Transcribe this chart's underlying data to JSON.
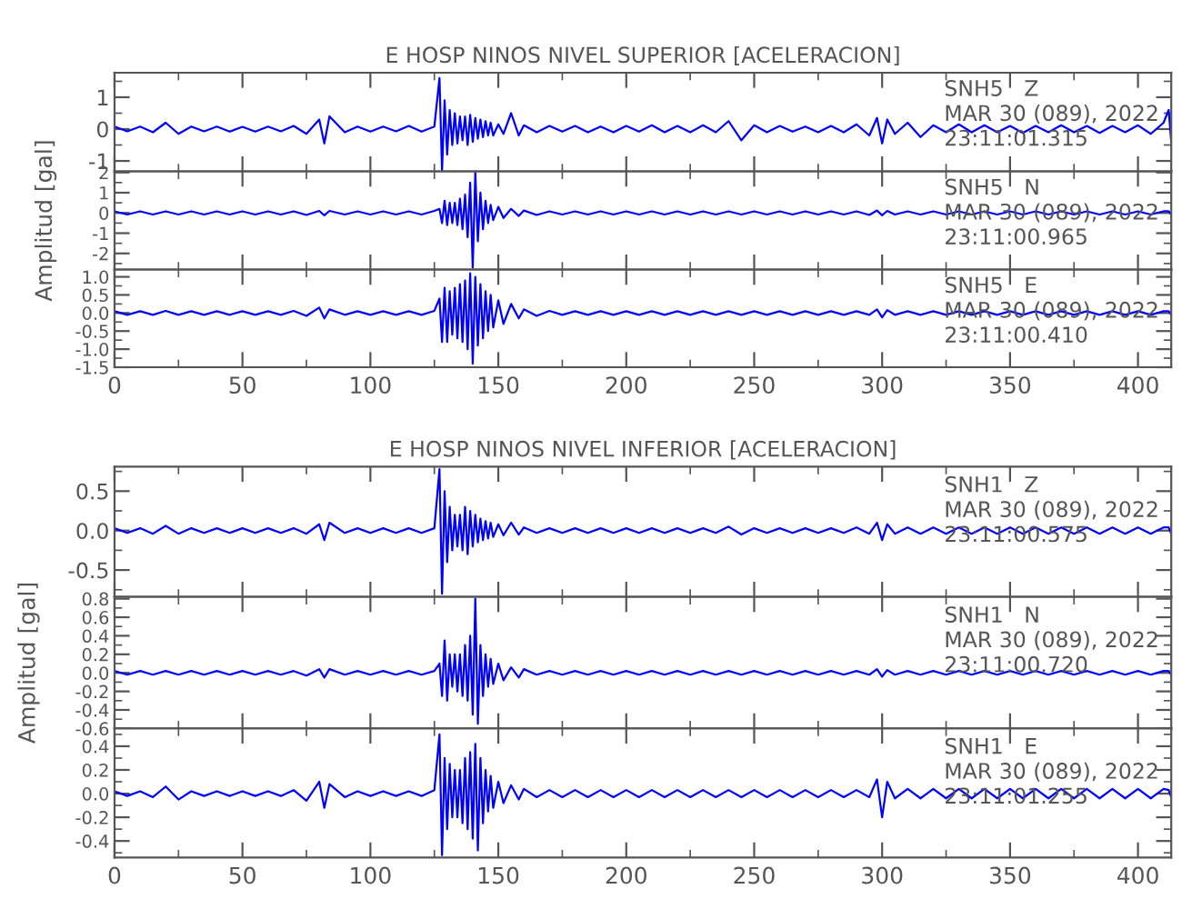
{
  "chart_data": [
    {
      "type": "line",
      "title": "E HOSP NINOS NIVEL SUPERIOR [ACELERACION]",
      "annotations": [
        "SNH5   Z\nMAR 30 (089), 2022\n23:11:01.315"
      ],
      "tick_labels": "y",
      "xlim": [
        0,
        413
      ],
      "xticks": [
        0,
        50,
        100,
        150,
        200,
        250,
        300,
        350,
        400
      ],
      "ylim": [
        -1.33,
        1.77
      ],
      "yticks": [
        -1,
        0,
        1
      ],
      "x": [
        0,
        5,
        10,
        15,
        20,
        25,
        30,
        35,
        40,
        45,
        50,
        55,
        60,
        65,
        70,
        75,
        80,
        82,
        84,
        90,
        95,
        100,
        105,
        110,
        115,
        120,
        125,
        127,
        128,
        129,
        130,
        131,
        132,
        133,
        134,
        135,
        136,
        137,
        138,
        139,
        140,
        141,
        142,
        143,
        144,
        145,
        146,
        147,
        148,
        150,
        152,
        155,
        158,
        160,
        165,
        170,
        175,
        180,
        185,
        190,
        195,
        200,
        205,
        210,
        215,
        220,
        225,
        230,
        235,
        240,
        245,
        250,
        255,
        260,
        265,
        270,
        275,
        280,
        285,
        290,
        295,
        298,
        300,
        302,
        305,
        310,
        315,
        320,
        325,
        330,
        335,
        340,
        345,
        350,
        355,
        360,
        365,
        370,
        375,
        380,
        385,
        390,
        395,
        400,
        405,
        410,
        412,
        413
      ],
      "series": [
        {
          "color": "#0000ff",
          "values": [
            0.08,
            -0.07,
            0.08,
            -0.1,
            0.2,
            -0.15,
            0.08,
            -0.07,
            0.08,
            -0.08,
            0.07,
            -0.08,
            0.08,
            -0.07,
            0.1,
            -0.15,
            0.3,
            -0.45,
            0.4,
            -0.1,
            0.08,
            -0.08,
            0.08,
            -0.07,
            0.1,
            -0.08,
            0.08,
            1.6,
            -1.3,
            0.9,
            -0.8,
            0.6,
            -0.5,
            0.5,
            -0.45,
            0.4,
            -0.35,
            0.4,
            -0.5,
            0.45,
            -0.4,
            0.35,
            -0.3,
            0.3,
            -0.25,
            0.25,
            -0.2,
            0.2,
            -0.2,
            0.15,
            -0.15,
            0.5,
            -0.2,
            0.12,
            -0.1,
            0.1,
            -0.08,
            0.1,
            -0.1,
            0.08,
            -0.1,
            0.1,
            -0.08,
            0.12,
            -0.1,
            0.1,
            -0.1,
            0.12,
            -0.1,
            0.25,
            -0.35,
            0.12,
            -0.1,
            0.1,
            -0.08,
            0.08,
            -0.1,
            0.1,
            -0.1,
            0.15,
            -0.2,
            0.35,
            -0.45,
            0.3,
            -0.15,
            0.2,
            -0.25,
            0.12,
            -0.1,
            0.15,
            -0.1,
            0.12,
            -0.1,
            0.1,
            -0.12,
            0.1,
            -0.1,
            0.12,
            -0.1,
            0.1,
            -0.12,
            0.1,
            -0.1,
            0.12,
            -0.15,
            0.2,
            0.6,
            -0.4
          ]
        }
      ]
    },
    {
      "type": "line",
      "ylabel": "Amplitud [gal]",
      "annotations": [
        "SNH5   N\nMAR 30 (089), 2022\n23:11:00.965"
      ],
      "tick_labels": "y",
      "xlim": [
        0,
        413
      ],
      "xticks": [
        0,
        50,
        100,
        150,
        200,
        250,
        300,
        350,
        400
      ],
      "ylim": [
        -2.8,
        2.05
      ],
      "yticks": [
        -2,
        -1,
        0,
        1,
        2
      ],
      "x": [
        0,
        5,
        10,
        15,
        20,
        25,
        30,
        35,
        40,
        45,
        50,
        55,
        60,
        65,
        70,
        75,
        80,
        82,
        84,
        90,
        95,
        100,
        105,
        110,
        115,
        120,
        125,
        127,
        128,
        129,
        130,
        131,
        132,
        133,
        134,
        135,
        136,
        137,
        138,
        139,
        140,
        141,
        142,
        143,
        144,
        145,
        146,
        147,
        148,
        150,
        152,
        155,
        158,
        160,
        165,
        170,
        175,
        180,
        185,
        190,
        195,
        200,
        205,
        210,
        215,
        220,
        225,
        230,
        235,
        240,
        245,
        250,
        255,
        260,
        265,
        270,
        275,
        280,
        285,
        290,
        295,
        298,
        300,
        302,
        305,
        310,
        315,
        320,
        325,
        330,
        335,
        340,
        345,
        350,
        355,
        360,
        365,
        370,
        375,
        380,
        385,
        390,
        395,
        400,
        405,
        410,
        412,
        413
      ],
      "series": [
        {
          "color": "#0000ff",
          "values": [
            0.08,
            -0.08,
            0.08,
            -0.08,
            0.08,
            -0.08,
            0.08,
            -0.08,
            0.08,
            -0.08,
            0.08,
            -0.08,
            0.08,
            -0.08,
            0.08,
            -0.1,
            0.1,
            -0.12,
            0.1,
            -0.08,
            0.08,
            -0.08,
            0.08,
            -0.08,
            0.08,
            -0.08,
            0.1,
            0.2,
            -0.5,
            0.6,
            -0.6,
            0.5,
            -0.5,
            0.5,
            -0.6,
            0.7,
            -0.8,
            0.9,
            -1.2,
            1.5,
            -2.7,
            2.0,
            -1.4,
            1.0,
            -0.8,
            0.6,
            -0.5,
            0.4,
            -0.35,
            0.3,
            -0.25,
            0.2,
            -0.15,
            0.12,
            -0.1,
            0.08,
            -0.08,
            0.08,
            -0.08,
            0.08,
            -0.08,
            0.08,
            -0.08,
            0.08,
            -0.08,
            0.08,
            -0.08,
            0.08,
            -0.08,
            0.08,
            -0.08,
            0.08,
            -0.08,
            0.08,
            -0.08,
            0.08,
            -0.08,
            0.08,
            -0.08,
            0.08,
            -0.1,
            0.12,
            -0.12,
            0.1,
            -0.08,
            0.08,
            -0.08,
            0.08,
            -0.08,
            0.08,
            -0.08,
            0.08,
            -0.08,
            0.08,
            -0.08,
            0.08,
            -0.08,
            0.08,
            -0.08,
            0.08,
            -0.08,
            0.08,
            -0.08,
            0.08,
            -0.08,
            0.08,
            0.08,
            -0.08
          ]
        }
      ]
    },
    {
      "type": "line",
      "annotations": [
        "SNH5   E\nMAR 30 (089), 2022\n23:11:00.410"
      ],
      "xlim": [
        0,
        413
      ],
      "xticks": [
        0,
        50,
        100,
        150,
        200,
        250,
        300,
        350,
        400
      ],
      "ylim": [
        -1.5,
        1.2
      ],
      "yticks": [
        -1.5,
        {
          "value": -1,
          "label": "-1.0"
        },
        -0.5,
        {
          "value": 0,
          "label": "0.0"
        },
        0.5,
        {
          "value": 1,
          "label": "1.0"
        }
      ],
      "x": [
        0,
        5,
        10,
        15,
        20,
        25,
        30,
        35,
        40,
        45,
        50,
        55,
        60,
        65,
        70,
        75,
        80,
        82,
        84,
        90,
        95,
        100,
        105,
        110,
        115,
        120,
        125,
        127,
        128,
        129,
        130,
        131,
        132,
        133,
        134,
        135,
        136,
        137,
        138,
        139,
        140,
        141,
        142,
        143,
        144,
        145,
        146,
        147,
        148,
        150,
        152,
        155,
        158,
        160,
        165,
        170,
        175,
        180,
        185,
        190,
        195,
        200,
        205,
        210,
        215,
        220,
        225,
        230,
        235,
        240,
        245,
        250,
        255,
        260,
        265,
        270,
        275,
        280,
        285,
        290,
        295,
        298,
        300,
        302,
        305,
        310,
        315,
        320,
        325,
        330,
        335,
        340,
        345,
        350,
        355,
        360,
        365,
        370,
        375,
        380,
        385,
        390,
        395,
        400,
        405,
        410,
        412,
        413
      ],
      "series": [
        {
          "color": "#0000ff",
          "values": [
            0.05,
            -0.05,
            0.05,
            -0.05,
            0.06,
            -0.05,
            0.05,
            -0.05,
            0.05,
            -0.05,
            0.05,
            -0.05,
            0.05,
            -0.05,
            0.06,
            -0.08,
            0.15,
            -0.15,
            0.1,
            -0.05,
            0.05,
            -0.05,
            0.05,
            -0.05,
            0.05,
            -0.05,
            0.06,
            0.4,
            -0.8,
            0.7,
            -0.8,
            0.6,
            -0.6,
            0.7,
            -0.7,
            0.8,
            -0.8,
            0.9,
            -1.0,
            1.1,
            -1.4,
            1.0,
            -0.9,
            0.8,
            -0.7,
            0.6,
            -0.5,
            0.5,
            -0.4,
            0.35,
            -0.3,
            0.25,
            -0.15,
            0.1,
            -0.08,
            0.06,
            -0.05,
            0.05,
            -0.05,
            0.05,
            -0.05,
            0.05,
            -0.05,
            0.05,
            -0.05,
            0.05,
            -0.05,
            0.05,
            -0.05,
            0.05,
            -0.05,
            0.05,
            -0.05,
            0.05,
            -0.05,
            0.05,
            -0.05,
            0.05,
            -0.05,
            0.05,
            -0.05,
            0.1,
            -0.12,
            0.08,
            -0.05,
            0.05,
            -0.05,
            0.05,
            -0.05,
            0.05,
            -0.05,
            0.05,
            -0.05,
            0.05,
            -0.05,
            0.05,
            -0.05,
            0.05,
            -0.05,
            0.05,
            -0.05,
            0.05,
            -0.05,
            0.05,
            -0.05,
            0.05,
            0.05,
            -0.05
          ]
        }
      ]
    },
    {
      "type": "line",
      "title": "E HOSP NINOS NIVEL INFERIOR [ACELERACION]",
      "annotations": [
        "SNH1   Z\nMAR 30 (089), 2022\n23:11:00.575"
      ],
      "tick_labels": "y",
      "xlim": [
        0,
        413
      ],
      "xticks": [
        0,
        50,
        100,
        150,
        200,
        250,
        300,
        350,
        400
      ],
      "ylim": [
        -0.84,
        0.81
      ],
      "yticks": [
        -0.5,
        {
          "value": 0,
          "label": "0.0"
        },
        0.5
      ],
      "x": [
        0,
        5,
        10,
        15,
        20,
        25,
        30,
        35,
        40,
        45,
        50,
        55,
        60,
        65,
        70,
        75,
        80,
        82,
        84,
        90,
        95,
        100,
        105,
        110,
        115,
        120,
        125,
        127,
        128,
        129,
        130,
        131,
        132,
        133,
        134,
        135,
        136,
        137,
        138,
        139,
        140,
        141,
        142,
        143,
        144,
        145,
        146,
        147,
        148,
        150,
        152,
        155,
        158,
        160,
        165,
        170,
        175,
        180,
        185,
        190,
        195,
        200,
        205,
        210,
        215,
        220,
        225,
        230,
        235,
        240,
        245,
        250,
        255,
        260,
        265,
        270,
        275,
        280,
        285,
        290,
        295,
        298,
        300,
        302,
        305,
        310,
        315,
        320,
        325,
        330,
        335,
        340,
        345,
        350,
        355,
        360,
        365,
        370,
        375,
        380,
        385,
        390,
        395,
        400,
        405,
        410,
        412,
        413
      ],
      "series": [
        {
          "color": "#0000ff",
          "values": [
            0.03,
            -0.03,
            0.03,
            -0.04,
            0.06,
            -0.04,
            0.03,
            -0.03,
            0.03,
            -0.03,
            0.03,
            -0.03,
            0.03,
            -0.03,
            0.03,
            -0.04,
            0.08,
            -0.12,
            0.1,
            -0.03,
            0.03,
            -0.03,
            0.03,
            -0.03,
            0.03,
            -0.03,
            0.03,
            0.78,
            -0.8,
            0.5,
            -0.4,
            0.3,
            -0.25,
            0.2,
            -0.2,
            0.2,
            -0.25,
            0.3,
            -0.3,
            0.25,
            -0.2,
            0.2,
            -0.15,
            0.15,
            -0.12,
            0.12,
            -0.1,
            0.1,
            -0.08,
            0.08,
            -0.06,
            0.1,
            -0.05,
            0.04,
            -0.03,
            0.03,
            -0.03,
            0.03,
            -0.03,
            0.03,
            -0.03,
            0.03,
            -0.03,
            0.03,
            -0.03,
            0.03,
            -0.03,
            0.03,
            -0.03,
            0.05,
            -0.05,
            0.03,
            -0.03,
            0.03,
            -0.03,
            0.03,
            -0.03,
            0.03,
            -0.03,
            0.04,
            -0.04,
            0.1,
            -0.12,
            0.08,
            -0.04,
            0.04,
            -0.04,
            0.04,
            -0.04,
            0.04,
            -0.04,
            0.04,
            -0.04,
            0.04,
            -0.04,
            0.04,
            -0.04,
            0.04,
            -0.04,
            0.04,
            -0.04,
            0.04,
            -0.04,
            0.04,
            -0.04,
            0.04,
            0.04,
            -0.04
          ]
        }
      ]
    },
    {
      "type": "line",
      "ylabel": "Amplitud [gal]",
      "annotations": [
        "SNH1   N\nMAR 30 (089), 2022\n23:11:00.720"
      ],
      "tick_labels": "y",
      "xlim": [
        0,
        413
      ],
      "xticks": [
        0,
        50,
        100,
        150,
        200,
        250,
        300,
        350,
        400
      ],
      "ylim": [
        -0.6,
        0.82
      ],
      "yticks": [
        -0.6,
        -0.4,
        -0.2,
        {
          "value": 0,
          "label": "0.0"
        },
        0.2,
        0.4,
        0.6,
        0.8
      ],
      "x": [
        0,
        5,
        10,
        15,
        20,
        25,
        30,
        35,
        40,
        45,
        50,
        55,
        60,
        65,
        70,
        75,
        80,
        82,
        84,
        90,
        95,
        100,
        105,
        110,
        115,
        120,
        125,
        127,
        128,
        129,
        130,
        131,
        132,
        133,
        134,
        135,
        136,
        137,
        138,
        139,
        140,
        141,
        142,
        143,
        144,
        145,
        146,
        147,
        148,
        150,
        152,
        155,
        158,
        160,
        165,
        170,
        175,
        180,
        185,
        190,
        195,
        200,
        205,
        210,
        215,
        220,
        225,
        230,
        235,
        240,
        245,
        250,
        255,
        260,
        265,
        270,
        275,
        280,
        285,
        290,
        295,
        298,
        300,
        302,
        305,
        310,
        315,
        320,
        325,
        330,
        335,
        340,
        345,
        350,
        355,
        360,
        365,
        370,
        375,
        380,
        385,
        390,
        395,
        400,
        405,
        410,
        412,
        413
      ],
      "series": [
        {
          "color": "#0000ff",
          "values": [
            0.02,
            -0.02,
            0.02,
            -0.02,
            0.02,
            -0.02,
            0.02,
            -0.02,
            0.02,
            -0.02,
            0.02,
            -0.02,
            0.02,
            -0.02,
            0.02,
            -0.03,
            0.04,
            -0.05,
            0.04,
            -0.02,
            0.02,
            -0.02,
            0.02,
            -0.02,
            0.02,
            -0.02,
            0.02,
            0.1,
            -0.25,
            0.35,
            -0.3,
            0.2,
            -0.15,
            0.2,
            -0.2,
            0.2,
            -0.25,
            0.3,
            -0.3,
            0.4,
            -0.45,
            0.8,
            -0.55,
            0.3,
            -0.25,
            0.2,
            -0.15,
            0.15,
            -0.12,
            0.1,
            -0.08,
            0.06,
            -0.05,
            0.04,
            -0.02,
            0.02,
            -0.02,
            0.02,
            -0.02,
            0.02,
            -0.02,
            0.02,
            -0.02,
            0.02,
            -0.02,
            0.02,
            -0.02,
            0.02,
            -0.02,
            0.02,
            -0.02,
            0.02,
            -0.02,
            0.02,
            -0.02,
            0.02,
            -0.02,
            0.02,
            -0.02,
            0.02,
            -0.02,
            0.04,
            -0.04,
            0.03,
            -0.02,
            0.02,
            -0.02,
            0.02,
            -0.02,
            0.02,
            -0.02,
            0.02,
            -0.02,
            0.02,
            -0.02,
            0.02,
            -0.02,
            0.02,
            -0.02,
            0.02,
            -0.02,
            0.02,
            -0.02,
            0.02,
            -0.02,
            0.02,
            0.02,
            -0.02
          ]
        }
      ]
    },
    {
      "type": "line",
      "annotations": [
        "SNH1   E\nMAR 30 (089), 2022\n23:11:01.255"
      ],
      "xlim": [
        0,
        413
      ],
      "xticks": [
        0,
        50,
        100,
        150,
        200,
        250,
        300,
        350,
        400
      ],
      "ylim": [
        -0.54,
        0.55
      ],
      "yticks": [
        -0.4,
        -0.2,
        {
          "value": 0,
          "label": "0.0"
        },
        0.2,
        0.4
      ],
      "x": [
        0,
        5,
        10,
        15,
        20,
        25,
        30,
        35,
        40,
        45,
        50,
        55,
        60,
        65,
        70,
        75,
        80,
        82,
        84,
        90,
        95,
        100,
        105,
        110,
        115,
        120,
        125,
        127,
        128,
        129,
        130,
        131,
        132,
        133,
        134,
        135,
        136,
        137,
        138,
        139,
        140,
        141,
        142,
        143,
        144,
        145,
        146,
        147,
        148,
        150,
        152,
        155,
        158,
        160,
        165,
        170,
        175,
        180,
        185,
        190,
        195,
        200,
        205,
        210,
        215,
        220,
        225,
        230,
        235,
        240,
        245,
        250,
        255,
        260,
        265,
        270,
        275,
        280,
        285,
        290,
        295,
        298,
        300,
        302,
        305,
        310,
        315,
        320,
        325,
        330,
        335,
        340,
        345,
        350,
        355,
        360,
        365,
        370,
        375,
        380,
        385,
        390,
        395,
        400,
        405,
        410,
        412,
        413
      ],
      "series": [
        {
          "color": "#0000ff",
          "values": [
            0.02,
            -0.02,
            0.02,
            -0.03,
            0.06,
            -0.05,
            0.02,
            -0.02,
            0.02,
            -0.02,
            0.02,
            -0.02,
            0.02,
            -0.02,
            0.03,
            -0.06,
            0.1,
            -0.12,
            0.08,
            -0.03,
            0.02,
            -0.02,
            0.02,
            -0.02,
            0.02,
            -0.02,
            0.03,
            0.5,
            -0.52,
            0.3,
            -0.3,
            0.25,
            -0.2,
            0.2,
            -0.2,
            0.2,
            -0.25,
            0.3,
            -0.3,
            0.35,
            -0.38,
            0.42,
            -0.48,
            0.3,
            -0.25,
            0.2,
            -0.15,
            0.15,
            -0.12,
            0.1,
            -0.08,
            0.07,
            -0.05,
            0.04,
            -0.03,
            0.03,
            -0.03,
            0.03,
            -0.03,
            0.03,
            -0.03,
            0.03,
            -0.03,
            0.03,
            -0.03,
            0.03,
            -0.03,
            0.03,
            -0.03,
            0.03,
            -0.03,
            0.03,
            -0.03,
            0.03,
            -0.03,
            0.03,
            -0.03,
            0.03,
            -0.03,
            0.03,
            -0.03,
            0.12,
            -0.2,
            0.1,
            -0.04,
            0.04,
            -0.04,
            0.04,
            -0.04,
            0.04,
            -0.04,
            0.04,
            -0.04,
            0.04,
            -0.04,
            0.04,
            -0.04,
            0.04,
            -0.04,
            0.04,
            -0.04,
            0.04,
            -0.04,
            0.04,
            -0.04,
            0.04,
            0.03,
            -0.03
          ]
        }
      ]
    }
  ]
}
